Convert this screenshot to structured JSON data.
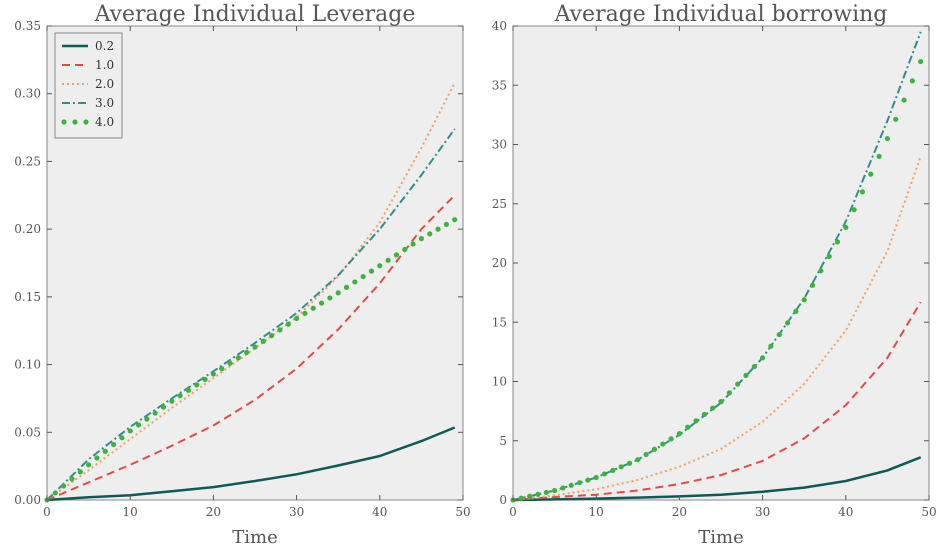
{
  "chart_data": [
    {
      "type": "line",
      "title": "Average Individual Leverage",
      "xlabel": "Time",
      "ylabel": "",
      "xlim": [
        0,
        50
      ],
      "ylim": [
        0,
        0.35
      ],
      "xticks": [
        "0",
        "10",
        "20",
        "30",
        "40",
        "50"
      ],
      "yticks": [
        "0.00",
        "0.05",
        "0.10",
        "0.15",
        "0.20",
        "0.25",
        "0.30",
        "0.35"
      ],
      "legend": {
        "placement": "top-left"
      },
      "x": [
        0,
        5,
        10,
        15,
        20,
        25,
        30,
        35,
        40,
        45,
        49
      ],
      "series": [
        {
          "name": "0.2",
          "color": "#0e5a57",
          "style": "solid",
          "values": [
            0,
            0.002,
            0.0035,
            0.0065,
            0.0095,
            0.014,
            0.019,
            0.0255,
            0.0325,
            0.0435,
            0.0535
          ]
        },
        {
          "name": "1.0",
          "color": "#e24a46",
          "style": "dashed",
          "values": [
            0,
            0.013,
            0.026,
            0.04,
            0.055,
            0.074,
            0.097,
            0.126,
            0.16,
            0.2,
            0.225
          ]
        },
        {
          "name": "2.0",
          "color": "#f0a060",
          "style": "dotted",
          "values": [
            0,
            0.022,
            0.045,
            0.068,
            0.09,
            0.112,
            0.135,
            0.165,
            0.205,
            0.26,
            0.308
          ]
        },
        {
          "name": "3.0",
          "color": "#2f8f8a",
          "style": "dashdot",
          "values": [
            0,
            0.03,
            0.054,
            0.075,
            0.095,
            0.116,
            0.138,
            0.166,
            0.2,
            0.24,
            0.274
          ]
        },
        {
          "name": "4.0",
          "color": "#3cb43c",
          "style": "dots",
          "values": [
            0,
            0.026,
            0.051,
            0.073,
            0.093,
            0.113,
            0.134,
            0.153,
            0.173,
            0.193,
            0.207
          ]
        }
      ]
    },
    {
      "type": "line",
      "title": "Average Individual borrowing",
      "xlabel": "Time",
      "ylabel": "",
      "xlim": [
        0,
        50
      ],
      "ylim": [
        0,
        40
      ],
      "xticks": [
        "0",
        "10",
        "20",
        "30",
        "40",
        "50"
      ],
      "yticks": [
        "0",
        "5",
        "10",
        "15",
        "20",
        "25",
        "30",
        "35",
        "40"
      ],
      "x": [
        0,
        5,
        10,
        15,
        20,
        25,
        30,
        35,
        40,
        45,
        49
      ],
      "series": [
        {
          "color": "#0e5a57",
          "style": "solid",
          "values": [
            0,
            0.05,
            0.12,
            0.2,
            0.3,
            0.45,
            0.7,
            1.05,
            1.6,
            2.5,
            3.6
          ]
        },
        {
          "color": "#e24a46",
          "style": "dashed",
          "values": [
            0,
            0.25,
            0.45,
            0.8,
            1.35,
            2.1,
            3.3,
            5.2,
            8.0,
            12.0,
            16.7
          ]
        },
        {
          "color": "#f0a060",
          "style": "dotted",
          "values": [
            0,
            0.4,
            0.9,
            1.7,
            2.8,
            4.3,
            6.6,
            9.8,
            14.3,
            21.0,
            29.0
          ]
        },
        {
          "color": "#2f8f8a",
          "style": "dashdot",
          "values": [
            0,
            0.8,
            1.9,
            3.4,
            5.5,
            8.2,
            12.0,
            17.0,
            23.5,
            32.0,
            39.5
          ]
        },
        {
          "color": "#3cb43c",
          "style": "dots",
          "values": [
            0,
            0.8,
            1.9,
            3.4,
            5.6,
            8.3,
            12.0,
            16.9,
            23.0,
            30.5,
            37.0
          ]
        }
      ]
    }
  ]
}
